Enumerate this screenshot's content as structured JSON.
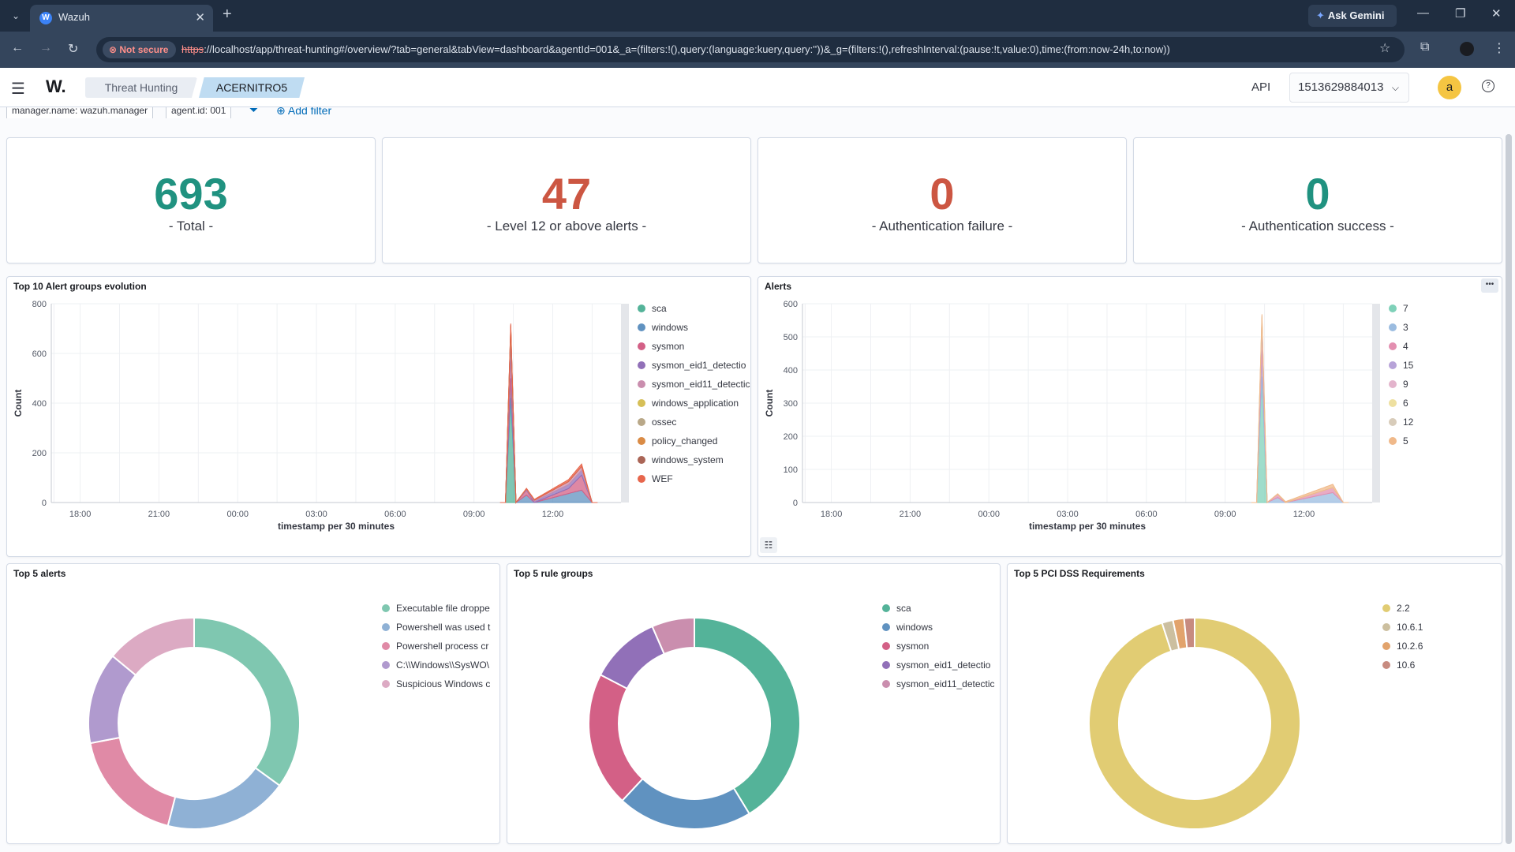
{
  "browser": {
    "tab_title": "Wazuh",
    "tab_favicon": "W",
    "ask_gemini": "Ask Gemini",
    "not_secure": "Not secure",
    "url_scheme": "https",
    "url_rest": "://localhost/app/threat-hunting#/overview/?tab=general&tabView=dashboard&agentId=001&_a=(filters:!(),query:(language:kuery,query:''))&_g=(filters:!(),refreshInterval:(pause:!t,value:0),time:(from:now-24h,to:now))"
  },
  "header": {
    "logo": "W.",
    "breadcrumb_1": "Threat Hunting",
    "breadcrumb_2": "ACERNITRO5",
    "api_label": "API",
    "api_value": "1513629884013",
    "avatar_letter": "a",
    "help_symbol": "?"
  },
  "filters": {
    "pill_1": "manager.name: wazuh.manager",
    "pill_2": "agent.id: 001",
    "add_filter": "Add filter"
  },
  "metrics": [
    {
      "value": "693",
      "label": "- Total -",
      "color": "#209280"
    },
    {
      "value": "47",
      "label": "- Level 12 or above alerts -",
      "color": "#cc5642"
    },
    {
      "value": "0",
      "label": "- Authentication failure -",
      "color": "#cc5642"
    },
    {
      "value": "0",
      "label": "- Authentication success -",
      "color": "#209280"
    }
  ],
  "panels": {
    "evolution_title": "Top 10 Alert groups evolution",
    "alerts_title": "Alerts",
    "top5_alerts_title": "Top 5 alerts",
    "top5_groups_title": "Top 5 rule groups",
    "top5_pci_title": "Top 5 PCI DSS Requirements"
  },
  "chart_data": [
    {
      "type": "area",
      "title": "Top 10 Alert groups evolution",
      "xlabel": "timestamp per 30 minutes",
      "ylabel": "Count",
      "ylim": [
        0,
        800
      ],
      "yticks": [
        0,
        200,
        400,
        600,
        800
      ],
      "xticks": [
        "18:00",
        "21:00",
        "00:00",
        "03:00",
        "06:00",
        "09:00",
        "12:00"
      ],
      "x_hours": [
        19.5,
        20.0,
        20.5,
        21.0,
        21.5,
        22.0,
        22.5,
        23.0,
        23.5,
        24.0,
        24.5,
        25.0,
        25.5,
        26.0,
        26.5,
        27.0,
        27.5,
        28.0,
        28.5,
        29.0,
        29.5,
        30.0,
        30.5,
        31.0,
        31.5,
        32.0,
        32.5,
        33.0,
        33.5,
        34.0,
        34.5,
        35.0,
        35.5,
        36.0,
        36.5,
        37.0,
        37.5,
        38.0
      ],
      "legend": [
        "sca",
        "windows",
        "sysmon",
        "sysmon_eid1_detectio",
        "sysmon_eid11_detectic",
        "windows_application",
        "ossec",
        "policy_changed",
        "windows_system",
        "WEF"
      ],
      "colors": [
        "#54b399",
        "#6092c0",
        "#d36086",
        "#9170b8",
        "#ca8eae",
        "#d6bf57",
        "#b9a888",
        "#da8b45",
        "#aa6556",
        "#e7664c"
      ],
      "series": [
        {
          "name": "sca",
          "points": [
            [
              34.2,
              0
            ],
            [
              34.4,
              420
            ],
            [
              34.6,
              0
            ]
          ]
        },
        {
          "name": "windows",
          "points": [
            [
              34.2,
              0
            ],
            [
              34.4,
              80
            ],
            [
              34.6,
              0
            ],
            [
              35.0,
              30
            ],
            [
              35.3,
              0
            ],
            [
              37.1,
              50
            ],
            [
              37.5,
              0
            ]
          ]
        },
        {
          "name": "sysmon",
          "points": [
            [
              34.2,
              0
            ],
            [
              34.4,
              120
            ],
            [
              34.6,
              0
            ],
            [
              35.0,
              20
            ],
            [
              35.3,
              0
            ],
            [
              36.6,
              20
            ],
            [
              37.1,
              60
            ],
            [
              37.5,
              0
            ]
          ]
        },
        {
          "name": "sysmon_eid1_detectio",
          "points": [
            [
              34.2,
              0
            ],
            [
              34.4,
              40
            ],
            [
              34.6,
              0
            ],
            [
              37.1,
              20
            ],
            [
              37.5,
              0
            ]
          ]
        },
        {
          "name": "sysmon_eid11_detectic",
          "points": [
            [
              34.2,
              0
            ],
            [
              34.4,
              30
            ],
            [
              34.6,
              0
            ],
            [
              37.1,
              15
            ],
            [
              37.5,
              0
            ]
          ]
        },
        {
          "name": "windows_application",
          "points": [
            [
              34.2,
              0
            ],
            [
              34.4,
              10
            ],
            [
              34.6,
              0
            ]
          ]
        },
        {
          "name": "ossec",
          "points": [
            [
              34.2,
              0
            ],
            [
              34.4,
              5
            ],
            [
              34.6,
              0
            ]
          ]
        },
        {
          "name": "policy_changed",
          "points": [
            [
              34.2,
              0
            ],
            [
              34.4,
              5
            ],
            [
              34.6,
              0
            ]
          ]
        },
        {
          "name": "windows_system",
          "points": [
            [
              34.2,
              0
            ],
            [
              34.4,
              5
            ],
            [
              34.6,
              0
            ]
          ]
        },
        {
          "name": "WEF",
          "points": [
            [
              34.2,
              0
            ],
            [
              34.4,
              5
            ],
            [
              34.6,
              0
            ],
            [
              37.1,
              10
            ],
            [
              37.5,
              0
            ]
          ]
        }
      ]
    },
    {
      "type": "area",
      "title": "Alerts",
      "xlabel": "timestamp per 30 minutes",
      "ylabel": "Count",
      "ylim": [
        0,
        600
      ],
      "yticks": [
        0,
        100,
        200,
        300,
        400,
        500,
        600
      ],
      "xticks": [
        "18:00",
        "21:00",
        "00:00",
        "03:00",
        "06:00",
        "09:00",
        "12:00"
      ],
      "legend": [
        "7",
        "3",
        "4",
        "15",
        "9",
        "6",
        "12",
        "5"
      ],
      "colors": [
        "#7fd1b9",
        "#9bbce0",
        "#e38fb0",
        "#b7a3d8",
        "#e3b4cc",
        "#eee0a0",
        "#d8ccba",
        "#f0b98a"
      ],
      "series": [
        {
          "name": "7",
          "points": [
            [
              34.2,
              0
            ],
            [
              34.4,
              380
            ],
            [
              34.6,
              0
            ]
          ]
        },
        {
          "name": "3",
          "points": [
            [
              34.2,
              0
            ],
            [
              34.4,
              80
            ],
            [
              34.6,
              0
            ],
            [
              35.0,
              15
            ],
            [
              35.3,
              0
            ],
            [
              37.1,
              30
            ],
            [
              37.5,
              0
            ]
          ]
        },
        {
          "name": "4",
          "points": [
            [
              34.2,
              0
            ],
            [
              34.4,
              60
            ],
            [
              34.6,
              0
            ],
            [
              35.0,
              10
            ],
            [
              35.3,
              0
            ],
            [
              37.1,
              15
            ],
            [
              37.5,
              0
            ]
          ]
        },
        {
          "name": "15",
          "points": [
            [
              34.2,
              0
            ],
            [
              34.4,
              20
            ],
            [
              34.6,
              0
            ]
          ]
        },
        {
          "name": "9",
          "points": [
            [
              34.2,
              0
            ],
            [
              34.4,
              10
            ],
            [
              34.6,
              0
            ]
          ]
        },
        {
          "name": "6",
          "points": [
            [
              34.2,
              0
            ],
            [
              34.4,
              8
            ],
            [
              34.6,
              0
            ]
          ]
        },
        {
          "name": "12",
          "points": [
            [
              34.2,
              0
            ],
            [
              34.4,
              5
            ],
            [
              34.6,
              0
            ]
          ]
        },
        {
          "name": "5",
          "points": [
            [
              34.2,
              0
            ],
            [
              34.4,
              5
            ],
            [
              34.6,
              0
            ],
            [
              37.1,
              10
            ],
            [
              37.5,
              0
            ]
          ]
        }
      ]
    },
    {
      "type": "pie",
      "title": "Top 5 alerts",
      "donut": true,
      "legend": [
        "Executable file droppe",
        "Powershell was used t",
        "Powershell process cr",
        "C:\\\\Windows\\\\SysWO\\",
        "Suspicious Windows c"
      ],
      "values": [
        35,
        19,
        18,
        14,
        14
      ],
      "colors": [
        "#7fc7b0",
        "#8fb1d5",
        "#e08aa6",
        "#b09ace",
        "#dcaac3"
      ]
    },
    {
      "type": "pie",
      "title": "Top 5 rule groups",
      "donut": true,
      "legend": [
        "sca",
        "windows",
        "sysmon",
        "sysmon_eid1_detectio",
        "sysmon_eid11_detectic"
      ],
      "values": [
        38,
        19,
        19,
        10,
        6
      ],
      "colors": [
        "#54b399",
        "#6092c0",
        "#d36086",
        "#9170b8",
        "#ca8eae"
      ]
    },
    {
      "type": "pie",
      "title": "Top 5 PCI DSS Requirements",
      "donut": true,
      "legend": [
        "2.2",
        "10.6.1",
        "10.2.6",
        "10.6"
      ],
      "values": [
        95,
        1.7,
        1.7,
        1.6
      ],
      "colors": [
        "#e1cc73",
        "#ccbf9f",
        "#e2a36c",
        "#c78b80"
      ]
    }
  ]
}
